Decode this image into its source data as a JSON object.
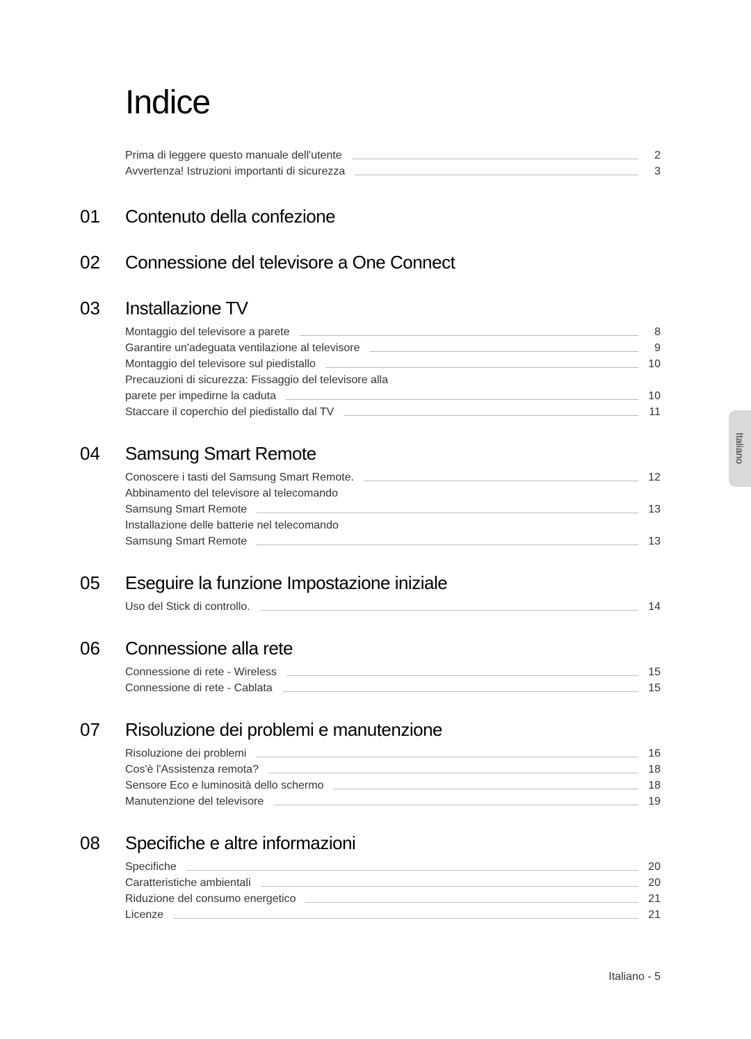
{
  "title": "Indice",
  "intro": [
    {
      "label": "Prima di leggere questo manuale dell'utente",
      "page": "2"
    },
    {
      "label": "Avvertenza! Istruzioni importanti di sicurezza",
      "page": "3"
    }
  ],
  "sections": [
    {
      "num": "01",
      "title": "Contenuto della confezione",
      "items": []
    },
    {
      "num": "02",
      "title": "Connessione del televisore a One Connect",
      "items": []
    },
    {
      "num": "03",
      "title": "Installazione TV",
      "items": [
        {
          "label": "Montaggio del televisore a parete",
          "page": "8"
        },
        {
          "label": "Garantire un'adeguata ventilazione al televisore",
          "page": "9"
        },
        {
          "label": "Montaggio del televisore sul piedistallo",
          "page": "10"
        },
        {
          "label": "Precauzioni di sicurezza: Fissaggio del televisore alla",
          "page": ""
        },
        {
          "label": "parete per impedirne la caduta",
          "page": "10"
        },
        {
          "label": "Staccare il coperchio del piedistallo dal TV",
          "page": "11"
        }
      ]
    },
    {
      "num": "04",
      "title": "Samsung Smart Remote",
      "items": [
        {
          "label": "Conoscere i tasti del Samsung Smart Remote.",
          "page": "12"
        },
        {
          "label": "Abbinamento del televisore al telecomando",
          "page": ""
        },
        {
          "label": "Samsung Smart Remote",
          "page": "13"
        },
        {
          "label": "Installazione delle batterie nel telecomando",
          "page": ""
        },
        {
          "label": "Samsung Smart Remote",
          "page": "13"
        }
      ]
    },
    {
      "num": "05",
      "title": "Eseguire la funzione Impostazione iniziale",
      "items": [
        {
          "label": "Uso del Stick di controllo.",
          "page": "14"
        }
      ]
    },
    {
      "num": "06",
      "title": "Connessione alla rete",
      "items": [
        {
          "label": "Connessione di rete - Wireless",
          "page": "15"
        },
        {
          "label": "Connessione di rete - Cablata",
          "page": "15"
        }
      ]
    },
    {
      "num": "07",
      "title": "Risoluzione dei problemi e manutenzione",
      "items": [
        {
          "label": "Risoluzione dei problemi",
          "page": "16"
        },
        {
          "label": "Cos'è l'Assistenza remota?",
          "page": "18"
        },
        {
          "label": "Sensore Eco e luminosità dello schermo",
          "page": "18"
        },
        {
          "label": "Manutenzione del televisore",
          "page": "19"
        }
      ]
    },
    {
      "num": "08",
      "title": "Specifiche e altre informazioni",
      "items": [
        {
          "label": "Specifiche",
          "page": "20"
        },
        {
          "label": "Caratteristiche ambientali",
          "page": "20"
        },
        {
          "label": "Riduzione del consumo energetico",
          "page": "21"
        },
        {
          "label": "Licenze",
          "page": "21"
        }
      ]
    }
  ],
  "sideTab": "Italiano",
  "footer": "Italiano - 5"
}
